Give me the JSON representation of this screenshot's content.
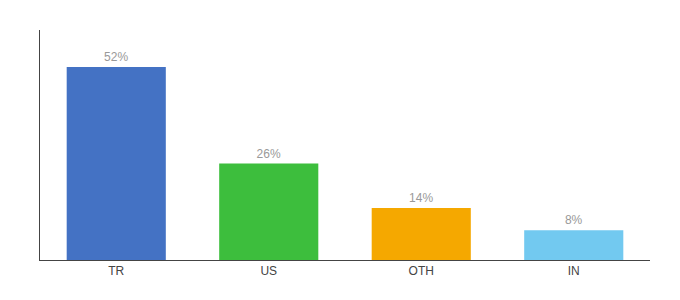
{
  "chart_data": {
    "type": "bar",
    "categories": [
      "TR",
      "US",
      "OTH",
      "IN"
    ],
    "values": [
      52,
      26,
      14,
      8
    ],
    "value_labels": [
      "52%",
      "26%",
      "14%",
      "8%"
    ],
    "data_labels": true,
    "colors": [
      "#4472c4",
      "#3dbe3d",
      "#f5a800",
      "#72c9f0"
    ],
    "ylim": [
      0,
      62
    ],
    "grid": false,
    "tick_labels": "x"
  }
}
